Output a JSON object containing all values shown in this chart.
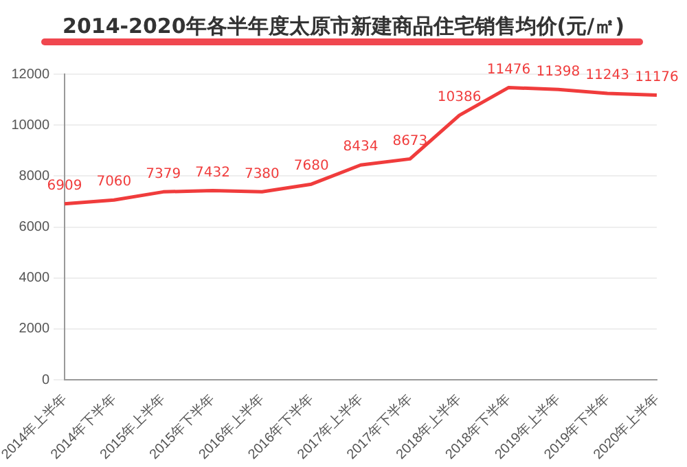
{
  "chart_data": {
    "type": "line",
    "title": "2014-2020年各半年度太原市新建商品住宅销售均价(元/㎡)",
    "categories": [
      "2014年上半年",
      "2014年下半年",
      "2015年上半年",
      "2015年下半年",
      "2016年上半年",
      "2016年下半年",
      "2017年上半年",
      "2017年下半年",
      "2018年上半年",
      "2018年下半年",
      "2019年上半年",
      "2019年下半年",
      "2020年上半年"
    ],
    "series": [
      {
        "color": "#f03c3c",
        "values": [
          6909,
          7060,
          7379,
          7432,
          7380,
          7680,
          8434,
          8673,
          10386,
          11476,
          11398,
          11243,
          11176
        ]
      }
    ],
    "ylim": [
      0,
      12000
    ],
    "yticks": [
      0,
      2000,
      4000,
      6000,
      8000,
      10000,
      12000
    ],
    "grid": "y",
    "data_labels": true,
    "marker": "none",
    "line_style": "solid",
    "legend": false
  }
}
